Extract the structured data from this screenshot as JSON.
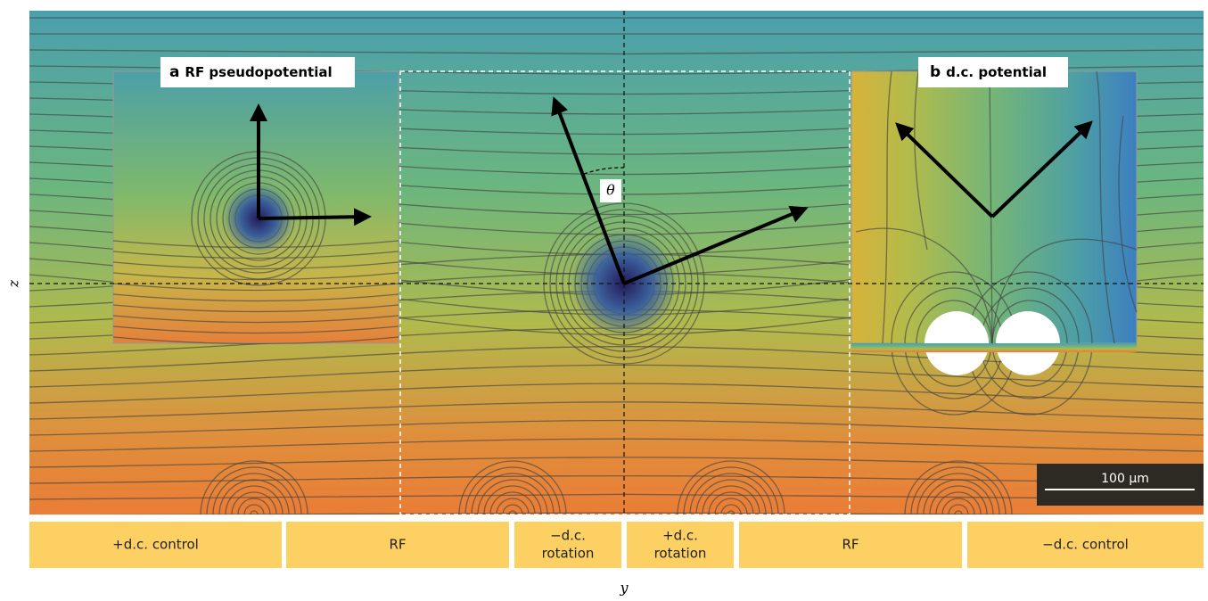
{
  "panels": {
    "a": {
      "letter": "a",
      "title": "RF pseudopotential"
    },
    "b": {
      "letter": "b",
      "title": "d.c. potential"
    }
  },
  "angle_label": "θ",
  "scale_bar": "100 μm",
  "electrodes": [
    {
      "line1": "+d.c. control"
    },
    {
      "line1": "RF"
    },
    {
      "line1": "−d.c.",
      "line2": "rotation"
    },
    {
      "line1": "+d.c.",
      "line2": "rotation"
    },
    {
      "line1": "RF"
    },
    {
      "line1": "−d.c. control"
    }
  ],
  "axes": {
    "vertical": "z",
    "horizontal": "y"
  }
}
